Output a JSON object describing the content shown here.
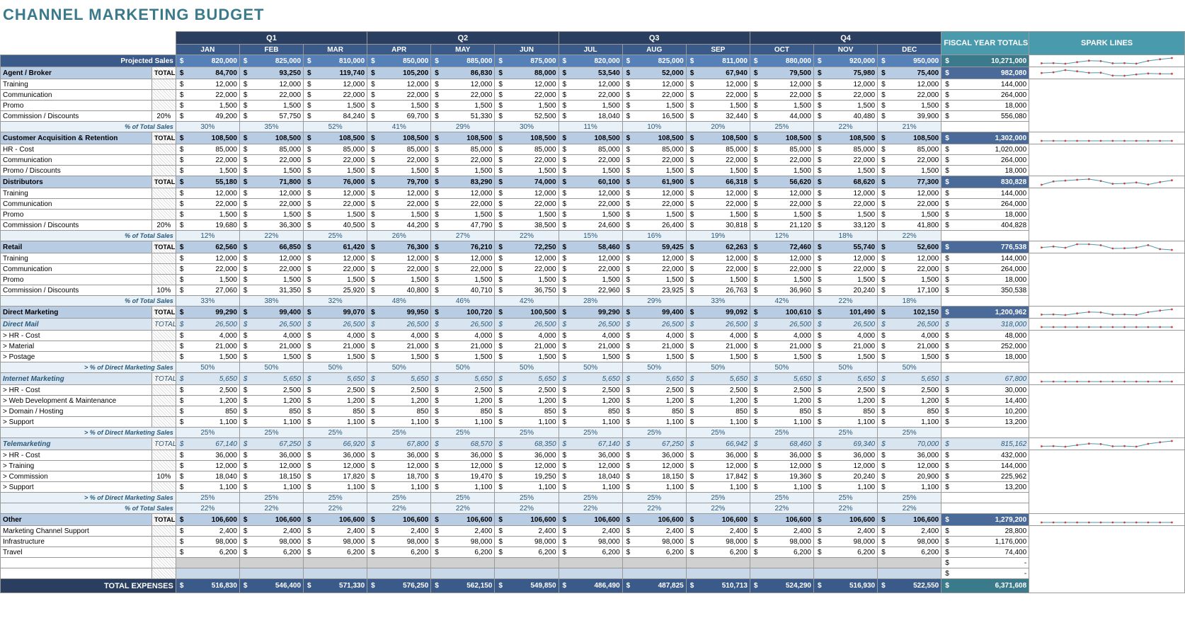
{
  "title": "CHANNEL MARKETING BUDGET",
  "colors": {
    "title": "#3a7a8a",
    "quarter_header": "#2a3f5f",
    "month_header": "#3a5a8a",
    "teal_header": "#4a9aad",
    "projected_bg": "#5580b8",
    "section_total_bg": "#b8cce4",
    "subtotal_bg": "#d8e4f0",
    "pct_bg": "#e8f0f8",
    "spark_line": "#4a9aad",
    "spark_marker": "#d04040"
  },
  "quarters": [
    "Q1",
    "Q2",
    "Q3",
    "Q4"
  ],
  "months": [
    "JAN",
    "FEB",
    "MAR",
    "APR",
    "MAY",
    "JUN",
    "JUL",
    "AUG",
    "SEP",
    "OCT",
    "NOV",
    "DEC"
  ],
  "header_labels": {
    "fiscal_year_totals": "FISCAL YEAR TOTALS",
    "spark_lines": "SPARK LINES",
    "projected_sales": "Projected Sales",
    "total_expenses": "TOTAL EXPENSES",
    "total_label": "TOTAL:",
    "pct_of_total_sales": "% of Total Sales",
    "pct_of_dm_sales": "> % of Direct Marketing Sales"
  },
  "projected_sales": {
    "values": [
      820000,
      825000,
      810000,
      850000,
      885000,
      875000,
      820000,
      825000,
      811000,
      880000,
      920000,
      950000
    ],
    "total": 10271000
  },
  "sections": [
    {
      "name": "Agent / Broker",
      "total": {
        "values": [
          84700,
          93250,
          119740,
          105200,
          86830,
          88000,
          53540,
          52000,
          67940,
          79500,
          75980,
          75400
        ],
        "fyt": 982080,
        "spark": true
      },
      "rows": [
        {
          "label": "Training",
          "values": [
            12000,
            12000,
            12000,
            12000,
            12000,
            12000,
            12000,
            12000,
            12000,
            12000,
            12000,
            12000
          ],
          "fyt": 144000
        },
        {
          "label": "Communication",
          "values": [
            22000,
            22000,
            22000,
            22000,
            22000,
            22000,
            22000,
            22000,
            22000,
            22000,
            22000,
            22000
          ],
          "fyt": 264000
        },
        {
          "label": "Promo",
          "values": [
            1500,
            1500,
            1500,
            1500,
            1500,
            1500,
            1500,
            1500,
            1500,
            1500,
            1500,
            1500
          ],
          "fyt": 18000
        },
        {
          "label": "Commission / Discounts",
          "pct": "20%",
          "values": [
            49200,
            57750,
            84240,
            69700,
            51330,
            52500,
            18040,
            16500,
            32440,
            44000,
            40480,
            39900
          ],
          "fyt": 556080
        }
      ],
      "pct_of_sales": [
        "30%",
        "35%",
        "52%",
        "41%",
        "29%",
        "30%",
        "11%",
        "10%",
        "20%",
        "25%",
        "22%",
        "21%"
      ]
    },
    {
      "name": "Customer Acquisition & Retention",
      "total": {
        "values": [
          108500,
          108500,
          108500,
          108500,
          108500,
          108500,
          108500,
          108500,
          108500,
          108500,
          108500,
          108500
        ],
        "fyt": 1302000,
        "spark": true
      },
      "rows": [
        {
          "label": "HR - Cost",
          "values": [
            85000,
            85000,
            85000,
            85000,
            85000,
            85000,
            85000,
            85000,
            85000,
            85000,
            85000,
            85000
          ],
          "fyt": 1020000
        },
        {
          "label": "Communication",
          "values": [
            22000,
            22000,
            22000,
            22000,
            22000,
            22000,
            22000,
            22000,
            22000,
            22000,
            22000,
            22000
          ],
          "fyt": 264000
        },
        {
          "label": "Promo / Discounts",
          "values": [
            1500,
            1500,
            1500,
            1500,
            1500,
            1500,
            1500,
            1500,
            1500,
            1500,
            1500,
            1500
          ],
          "fyt": 18000
        }
      ]
    },
    {
      "name": "Distributors",
      "total": {
        "values": [
          55180,
          71800,
          76000,
          79700,
          83290,
          74000,
          60100,
          61900,
          66318,
          56620,
          68620,
          77300
        ],
        "fyt": 830828,
        "spark": true
      },
      "rows": [
        {
          "label": "Training",
          "values": [
            12000,
            12000,
            12000,
            12000,
            12000,
            12000,
            12000,
            12000,
            12000,
            12000,
            12000,
            12000
          ],
          "fyt": 144000
        },
        {
          "label": "Communication",
          "values": [
            22000,
            22000,
            22000,
            22000,
            22000,
            22000,
            22000,
            22000,
            22000,
            22000,
            22000,
            22000
          ],
          "fyt": 264000
        },
        {
          "label": "Promo",
          "values": [
            1500,
            1500,
            1500,
            1500,
            1500,
            1500,
            1500,
            1500,
            1500,
            1500,
            1500,
            1500
          ],
          "fyt": 18000
        },
        {
          "label": "Commission / Discounts",
          "pct": "20%",
          "values": [
            19680,
            36300,
            40500,
            44200,
            47790,
            38500,
            24600,
            26400,
            30818,
            21120,
            33120,
            41800
          ],
          "fyt": 404828
        }
      ],
      "pct_of_sales": [
        "12%",
        "22%",
        "25%",
        "26%",
        "27%",
        "22%",
        "15%",
        "16%",
        "19%",
        "12%",
        "18%",
        "22%"
      ]
    },
    {
      "name": "Retail",
      "total": {
        "values": [
          62560,
          66850,
          61420,
          76300,
          76210,
          72250,
          58460,
          59425,
          62263,
          72460,
          55740,
          52600
        ],
        "fyt": 776538,
        "spark": true
      },
      "rows": [
        {
          "label": "Training",
          "values": [
            12000,
            12000,
            12000,
            12000,
            12000,
            12000,
            12000,
            12000,
            12000,
            12000,
            12000,
            12000
          ],
          "fyt": 144000
        },
        {
          "label": "Communication",
          "values": [
            22000,
            22000,
            22000,
            22000,
            22000,
            22000,
            22000,
            22000,
            22000,
            22000,
            22000,
            22000
          ],
          "fyt": 264000
        },
        {
          "label": "Promo",
          "values": [
            1500,
            1500,
            1500,
            1500,
            1500,
            1500,
            1500,
            1500,
            1500,
            1500,
            1500,
            1500
          ],
          "fyt": 18000
        },
        {
          "label": "Commission / Discounts",
          "pct": "10%",
          "values": [
            27060,
            31350,
            25920,
            40800,
            40710,
            36750,
            22960,
            23925,
            26763,
            36960,
            20240,
            17100
          ],
          "fyt": 350538
        }
      ],
      "pct_of_sales": [
        "33%",
        "38%",
        "32%",
        "48%",
        "46%",
        "42%",
        "28%",
        "29%",
        "33%",
        "42%",
        "22%",
        "18%"
      ]
    },
    {
      "name": "Direct Marketing",
      "total": {
        "values": [
          99290,
          99400,
          99070,
          99950,
          100720,
          100500,
          99290,
          99400,
          99092,
          100610,
          101490,
          102150
        ],
        "fyt": 1200962,
        "spark": true
      },
      "subsections": [
        {
          "name": "Direct Mail",
          "total": {
            "values": [
              26500,
              26500,
              26500,
              26500,
              26500,
              26500,
              26500,
              26500,
              26500,
              26500,
              26500,
              26500
            ],
            "fyt": 318000,
            "spark": true
          },
          "rows": [
            {
              "label": "> HR - Cost",
              "values": [
                4000,
                4000,
                4000,
                4000,
                4000,
                4000,
                4000,
                4000,
                4000,
                4000,
                4000,
                4000
              ],
              "fyt": 48000
            },
            {
              "label": "> Material",
              "values": [
                21000,
                21000,
                21000,
                21000,
                21000,
                21000,
                21000,
                21000,
                21000,
                21000,
                21000,
                21000
              ],
              "fyt": 252000
            },
            {
              "label": "> Postage",
              "values": [
                1500,
                1500,
                1500,
                1500,
                1500,
                1500,
                1500,
                1500,
                1500,
                1500,
                1500,
                1500
              ],
              "fyt": 18000
            }
          ],
          "pct_dm": [
            "50%",
            "50%",
            "50%",
            "50%",
            "50%",
            "50%",
            "50%",
            "50%",
            "50%",
            "50%",
            "50%",
            "50%"
          ]
        },
        {
          "name": "Internet Marketing",
          "total": {
            "values": [
              5650,
              5650,
              5650,
              5650,
              5650,
              5650,
              5650,
              5650,
              5650,
              5650,
              5650,
              5650
            ],
            "fyt": 67800,
            "spark": true
          },
          "rows": [
            {
              "label": "> HR - Cost",
              "values": [
                2500,
                2500,
                2500,
                2500,
                2500,
                2500,
                2500,
                2500,
                2500,
                2500,
                2500,
                2500
              ],
              "fyt": 30000
            },
            {
              "label": "> Web Development & Maintenance",
              "values": [
                1200,
                1200,
                1200,
                1200,
                1200,
                1200,
                1200,
                1200,
                1200,
                1200,
                1200,
                1200
              ],
              "fyt": 14400
            },
            {
              "label": "> Domain / Hosting",
              "values": [
                850,
                850,
                850,
                850,
                850,
                850,
                850,
                850,
                850,
                850,
                850,
                850
              ],
              "fyt": 10200
            },
            {
              "label": "> Support",
              "values": [
                1100,
                1100,
                1100,
                1100,
                1100,
                1100,
                1100,
                1100,
                1100,
                1100,
                1100,
                1100
              ],
              "fyt": 13200
            }
          ],
          "pct_dm": [
            "25%",
            "25%",
            "25%",
            "25%",
            "25%",
            "25%",
            "25%",
            "25%",
            "25%",
            "25%",
            "25%",
            "25%"
          ]
        },
        {
          "name": "Telemarketing",
          "total": {
            "values": [
              67140,
              67250,
              66920,
              67800,
              68570,
              68350,
              67140,
              67250,
              66942,
              68460,
              69340,
              70000
            ],
            "fyt": 815162,
            "spark": true
          },
          "rows": [
            {
              "label": "> HR - Cost",
              "values": [
                36000,
                36000,
                36000,
                36000,
                36000,
                36000,
                36000,
                36000,
                36000,
                36000,
                36000,
                36000
              ],
              "fyt": 432000
            },
            {
              "label": "> Training",
              "values": [
                12000,
                12000,
                12000,
                12000,
                12000,
                12000,
                12000,
                12000,
                12000,
                12000,
                12000,
                12000
              ],
              "fyt": 144000
            },
            {
              "label": "> Commission",
              "pct": "10%",
              "values": [
                18040,
                18150,
                17820,
                18700,
                19470,
                19250,
                18040,
                18150,
                17842,
                19360,
                20240,
                20900
              ],
              "fyt": 225962
            },
            {
              "label": "> Support",
              "values": [
                1100,
                1100,
                1100,
                1100,
                1100,
                1100,
                1100,
                1100,
                1100,
                1100,
                1100,
                1100
              ],
              "fyt": 13200
            }
          ],
          "pct_dm": [
            "25%",
            "25%",
            "25%",
            "25%",
            "25%",
            "25%",
            "25%",
            "25%",
            "25%",
            "25%",
            "25%",
            "25%"
          ]
        }
      ],
      "pct_of_sales": [
        "22%",
        "22%",
        "22%",
        "22%",
        "22%",
        "22%",
        "22%",
        "22%",
        "22%",
        "22%",
        "22%",
        "22%"
      ]
    },
    {
      "name": "Other",
      "total": {
        "values": [
          106600,
          106600,
          106600,
          106600,
          106600,
          106600,
          106600,
          106600,
          106600,
          106600,
          106600,
          106600
        ],
        "fyt": 1279200,
        "spark": true
      },
      "rows": [
        {
          "label": "Marketing Channel Support",
          "values": [
            2400,
            2400,
            2400,
            2400,
            2400,
            2400,
            2400,
            2400,
            2400,
            2400,
            2400,
            2400
          ],
          "fyt": 28800
        },
        {
          "label": "Infrastructure",
          "values": [
            98000,
            98000,
            98000,
            98000,
            98000,
            98000,
            98000,
            98000,
            98000,
            98000,
            98000,
            98000
          ],
          "fyt": 1176000
        },
        {
          "label": "Travel",
          "values": [
            6200,
            6200,
            6200,
            6200,
            6200,
            6200,
            6200,
            6200,
            6200,
            6200,
            6200,
            6200
          ],
          "fyt": 74400
        }
      ]
    }
  ],
  "total_expenses": {
    "values": [
      516830,
      546400,
      571330,
      576250,
      562150,
      549850,
      486490,
      487825,
      510713,
      524290,
      516930,
      522550
    ],
    "total": 6371608
  }
}
